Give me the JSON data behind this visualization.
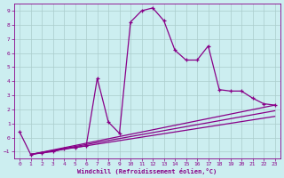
{
  "xlabel": "Windchill (Refroidissement éolien,°C)",
  "xlim": [
    -0.5,
    23.5
  ],
  "ylim": [
    -1.5,
    9.5
  ],
  "xticks": [
    0,
    1,
    2,
    3,
    4,
    5,
    6,
    7,
    8,
    9,
    10,
    11,
    12,
    13,
    14,
    15,
    16,
    17,
    18,
    19,
    20,
    21,
    22,
    23
  ],
  "yticks": [
    -1,
    0,
    1,
    2,
    3,
    4,
    5,
    6,
    7,
    8,
    9
  ],
  "bg_color": "#cceef0",
  "line_color": "#880088",
  "grid_color": "#aacccc",
  "series1_x": [
    0,
    1,
    2,
    3,
    4,
    5,
    6,
    7,
    8,
    9,
    10,
    11,
    12,
    13,
    14,
    15,
    16,
    17,
    18,
    19,
    20,
    21,
    22,
    23
  ],
  "series1_y": [
    0.4,
    -1.2,
    -1.1,
    -1.0,
    -0.8,
    -0.7,
    -0.6,
    4.2,
    1.1,
    0.3,
    8.2,
    9.0,
    9.2,
    8.3,
    6.2,
    5.5,
    5.5,
    6.5,
    3.4,
    3.3,
    3.3,
    2.8,
    2.4,
    2.3
  ],
  "series2_x": [
    1,
    23
  ],
  "series2_y": [
    -1.2,
    2.3
  ],
  "series3_x": [
    1,
    23
  ],
  "series3_y": [
    -1.2,
    1.9
  ],
  "series4_x": [
    1,
    23
  ],
  "series4_y": [
    -1.2,
    1.5
  ]
}
